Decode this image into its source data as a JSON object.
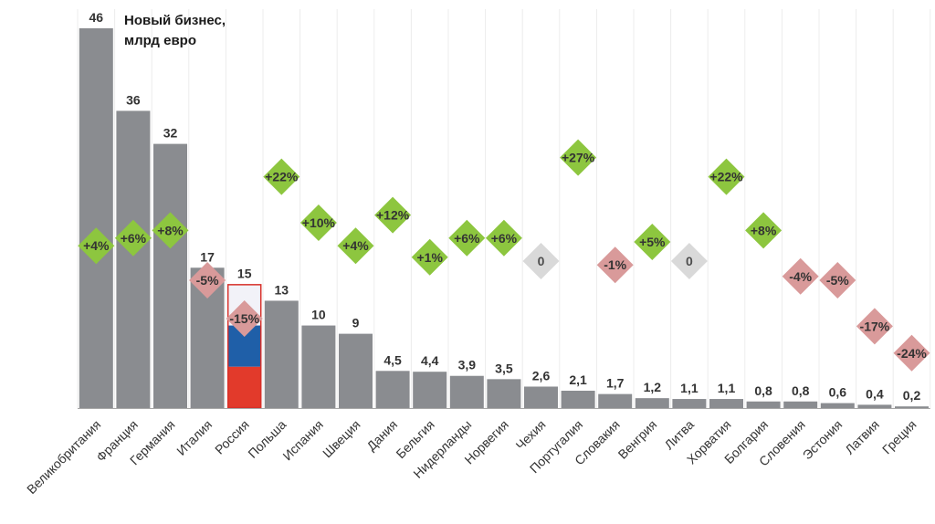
{
  "chart_data": {
    "type": "bar",
    "title_lines": [
      "Новый бизнес,",
      "млрд евро"
    ],
    "categories": [
      "Великобритания",
      "Франция",
      "Германия",
      "Италия",
      "Россия",
      "Польша",
      "Испания",
      "Швеция",
      "Дания",
      "Бельгия",
      "Нидерланды",
      "Норвегия",
      "Чехия",
      "Португалия",
      "Словакия",
      "Венгрия",
      "Литва",
      "Хорватия",
      "Болгария",
      "Словения",
      "Эстония",
      "Латвия",
      "Греция"
    ],
    "values": [
      46,
      36,
      32,
      17,
      15,
      13,
      10,
      9,
      4.5,
      4.4,
      3.9,
      3.5,
      2.6,
      2.1,
      1.7,
      1.2,
      1.1,
      1.1,
      0.8,
      0.8,
      0.6,
      0.4,
      0.2
    ],
    "value_labels": [
      "46",
      "36",
      "32",
      "17",
      "15",
      "13",
      "10",
      "9",
      "4,5",
      "4,4",
      "3,9",
      "3,5",
      "2,6",
      "2,1",
      "1,7",
      "1,2",
      "1,1",
      "1,1",
      "0,8",
      "0,8",
      "0,6",
      "0,4",
      "0,2"
    ],
    "changes": [
      4,
      6,
      8,
      -5,
      -15,
      22,
      10,
      4,
      12,
      1,
      6,
      6,
      0,
      27,
      -1,
      5,
      0,
      22,
      8,
      -4,
      -5,
      -17,
      -24
    ],
    "change_labels": [
      "+4%",
      "+6%",
      "+8%",
      "-5%",
      "-15%",
      "+22%",
      "+10%",
      "+4%",
      "+12%",
      "+1%",
      "+6%",
      "+6%",
      "0",
      "+27%",
      "-1%",
      "+5%",
      "0",
      "+22%",
      "+8%",
      "-4%",
      "-5%",
      "-17%",
      "-24%"
    ],
    "ylim": [
      0,
      46
    ],
    "highlight_index": 4,
    "grid": true,
    "colors": {
      "bar": "#8a8c90",
      "positive": "#8dc63f",
      "negative": "#d99a9a",
      "zero": "#d9d9d9",
      "highlight_outline": "#d7302a",
      "flag_white": "#f2f2f8",
      "flag_blue": "#1f5fa8",
      "flag_red": "#e23a2b",
      "grid": "#ececec",
      "axis": "#a6a6a6",
      "text": "#333333"
    }
  }
}
